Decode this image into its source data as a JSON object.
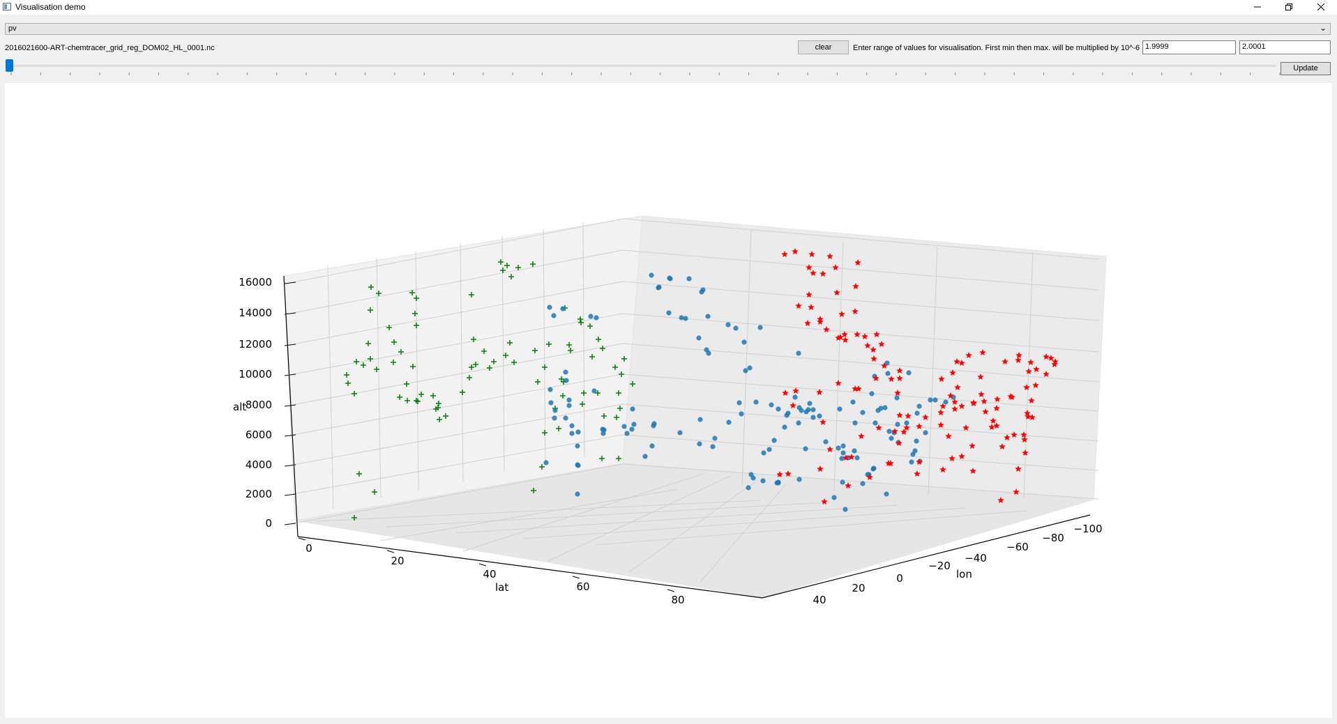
{
  "window": {
    "title": "Visualisation demo",
    "controls": [
      "minimize",
      "restore",
      "close"
    ]
  },
  "variable_select": {
    "value": "pv"
  },
  "file_label": "2016021600-ART-chemtracer_grid_reg_DOM02_HL_0001.nc",
  "clear_button": "clear",
  "range_prompt": "Enter range of values for visualisation. First min then max. will be multiplied by 10^-6",
  "range_min": "1.9999",
  "range_max": "2.0001",
  "update_button": "Update",
  "time_slider": {
    "value": 0
  },
  "chart_data": {
    "type": "scatter",
    "title": "",
    "xlabel": "lat",
    "ylabel": "lon",
    "zlabel": "alt",
    "x_ticks": [
      "0",
      "20",
      "40",
      "60",
      "80"
    ],
    "y_ticks": [
      "40",
      "20",
      "0",
      "−20",
      "−40",
      "−60",
      "−80",
      "−100"
    ],
    "z_ticks": [
      "0",
      "2000",
      "4000",
      "6000",
      "8000",
      "10000",
      "12000",
      "14000",
      "16000"
    ],
    "colors": {
      "green": "#008000",
      "blue": "#1f77b4",
      "red": "#ff0000"
    },
    "series": [
      {
        "marker": "plus",
        "color": "green",
        "note": "points projected on lat-alt wall"
      },
      {
        "marker": "circle",
        "color": "blue",
        "note": "points in volume"
      },
      {
        "marker": "star",
        "color": "red",
        "note": "points projected on lon-alt wall"
      }
    ]
  }
}
